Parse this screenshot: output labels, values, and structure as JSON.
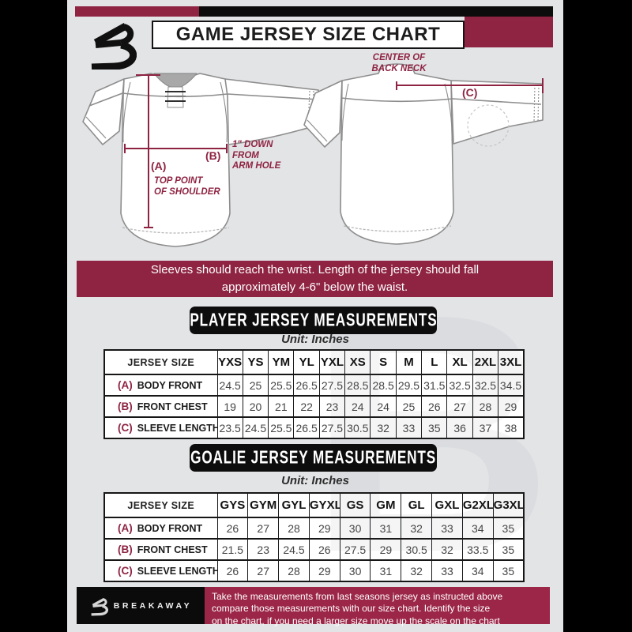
{
  "page": {
    "title": "GAME JERSEY SIZE CHART"
  },
  "colors": {
    "maroon": "#8e2342",
    "footer_maroon": "#9b2648",
    "panel_bg": "#e3e4e6",
    "black": "#0c0c0c"
  },
  "diagram": {
    "front": {
      "label_a": "(A)",
      "note_a": "TOP POINT\nOF SHOULDER",
      "label_b": "(B)",
      "note_b": "1\" DOWN\nFROM\nARM HOLE"
    },
    "back": {
      "label_c": "(C)",
      "note_c": "CENTER OF\nBACK NECK"
    }
  },
  "notice": "Sleeves should reach the wrist. Length of the jersey should fall\napproximately 4-6\" below the waist.",
  "sections": [
    {
      "title": "PLAYER JERSEY MEASUREMENTS",
      "unit": "Unit: Inches",
      "table": {
        "size_header": "JERSEY SIZE",
        "sizes": [
          "YXS",
          "YS",
          "YM",
          "YL",
          "YXL",
          "XS",
          "S",
          "M",
          "L",
          "XL",
          "2XL",
          "3XL"
        ],
        "rows": [
          {
            "key": "(A)",
            "label": "BODY FRONT",
            "values": [
              "24.5",
              "25",
              "25.5",
              "26.5",
              "27.5",
              "28.5",
              "28.5",
              "29.5",
              "31.5",
              "32.5",
              "32.5",
              "34.5"
            ]
          },
          {
            "key": "(B)",
            "label": "FRONT CHEST",
            "values": [
              "19",
              "20",
              "21",
              "22",
              "23",
              "24",
              "24",
              "25",
              "26",
              "27",
              "28",
              "29"
            ]
          },
          {
            "key": "(C)",
            "label": "SLEEVE LENGTH",
            "values": [
              "23.5",
              "24.5",
              "25.5",
              "26.5",
              "27.5",
              "30.5",
              "32",
              "33",
              "35",
              "36",
              "37",
              "38"
            ]
          }
        ]
      }
    },
    {
      "title": "GOALIE JERSEY MEASUREMENTS",
      "unit": "Unit: Inches",
      "table": {
        "size_header": "JERSEY SIZE",
        "sizes": [
          "GYS",
          "GYM",
          "GYL",
          "GYXL",
          "GS",
          "GM",
          "GL",
          "GXL",
          "G2XL",
          "G3XL"
        ],
        "rows": [
          {
            "key": "(A)",
            "label": "BODY FRONT",
            "values": [
              "26",
              "27",
              "28",
              "29",
              "30",
              "31",
              "32",
              "33",
              "34",
              "35"
            ]
          },
          {
            "key": "(B)",
            "label": "FRONT CHEST",
            "values": [
              "21.5",
              "23",
              "24.5",
              "26",
              "27.5",
              "29",
              "30.5",
              "32",
              "33.5",
              "35"
            ]
          },
          {
            "key": "(C)",
            "label": "SLEEVE LENGTH",
            "values": [
              "26",
              "27",
              "28",
              "29",
              "30",
              "31",
              "32",
              "33",
              "34",
              "35"
            ]
          }
        ]
      }
    }
  ],
  "footer": {
    "brand": "BREAKAWAY",
    "text": "Take the measurements from last seasons jersey as instructed above\ncompare those measurements with our size chart. Identify the size\non the chart, if you need a larger size move up the scale on the chart"
  },
  "watermark_letter": "B"
}
